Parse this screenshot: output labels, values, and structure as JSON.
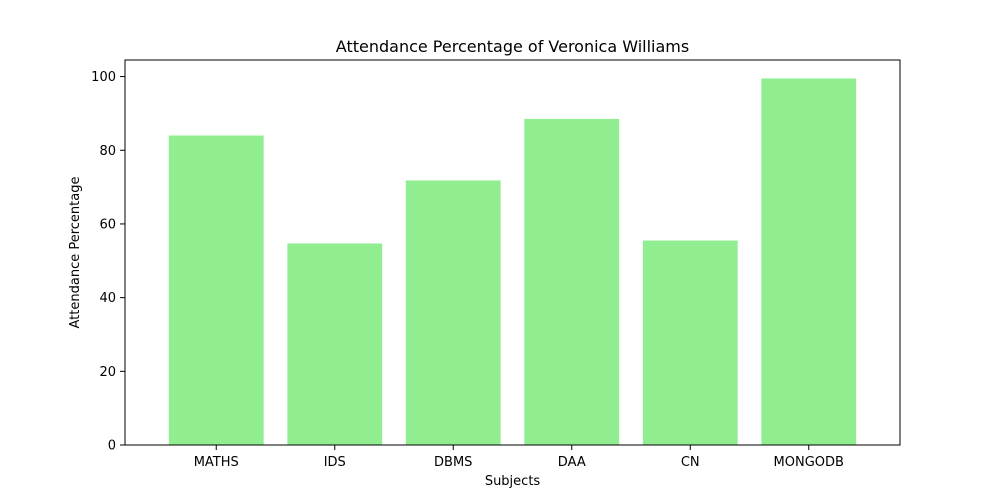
{
  "chart_data": {
    "type": "bar",
    "title": "Attendance Percentage of Veronica Williams",
    "xlabel": "Subjects",
    "ylabel": "Attendance Percentage",
    "categories": [
      "MATHS",
      "IDS",
      "DBMS",
      "DAA",
      "CN",
      "MONGODB"
    ],
    "values": [
      84,
      54.7,
      71.8,
      88.5,
      55.5,
      99.5
    ],
    "ylim": [
      0,
      104.5
    ],
    "yticks": [
      0,
      20,
      40,
      60,
      80,
      100
    ],
    "grid": false,
    "bar_color": "#90ee90"
  }
}
